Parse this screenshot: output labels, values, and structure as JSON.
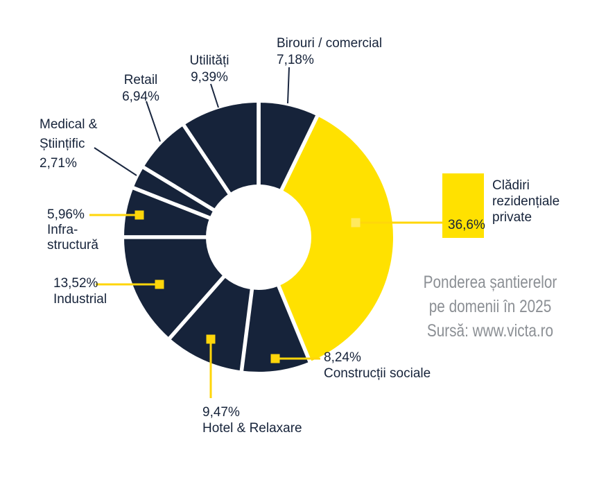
{
  "chart_data": {
    "type": "pie",
    "subtype": "donut",
    "title": "Ponderea șantierelor pe domenii în 2025",
    "source": "Sursă: www.victa.ro",
    "units": "%",
    "start_angle_deg": 0,
    "direction": "clockwise",
    "highlight_index": 1,
    "colors": {
      "highlight": "#ffe100",
      "default": "#16233a",
      "connector_yellow": "#ffd60a",
      "connector_dark": "#1a2740",
      "title_gray": "#8b8f94"
    },
    "series": [
      {
        "label": "Birouri / comercial",
        "value": 7.18,
        "display": "7,18%"
      },
      {
        "label": "Clădiri rezidențiale private",
        "value": 36.6,
        "display": "36,6%"
      },
      {
        "label": "Construcții sociale",
        "value": 8.24,
        "display": "8,24%"
      },
      {
        "label": "Hotel & Relaxare",
        "value": 9.47,
        "display": "9,47%"
      },
      {
        "label": "Industrial",
        "value": 13.52,
        "display": "13,52%"
      },
      {
        "label": "Infrastructură",
        "value": 5.96,
        "display": "5,96%"
      },
      {
        "label": "Medical & Științific",
        "value": 2.71,
        "display": "2,71%"
      },
      {
        "label": "Retail",
        "value": 6.94,
        "display": "6,94%"
      },
      {
        "label": "Utilități",
        "value": 9.39,
        "display": "9,39%"
      }
    ]
  },
  "callouts": {
    "birouri": {
      "name": "Birouri / comercial",
      "pct": "7,18%"
    },
    "utilitati": {
      "name": "Utilități",
      "pct": "9,39%"
    },
    "retail": {
      "name": "Retail",
      "pct": "6,94%"
    },
    "medical": {
      "name_line1": "Medical &",
      "name_line2": "Științific",
      "pct": "2,71%"
    },
    "infra": {
      "pct": "5,96%",
      "name_line1": "Infra-",
      "name_line2": "structură"
    },
    "industrial": {
      "pct": "13,52%",
      "name": "Industrial"
    },
    "hotel": {
      "pct": "9,47%",
      "name": "Hotel & Relaxare"
    },
    "sociale": {
      "pct": "8,24%",
      "name": "Construcții sociale"
    }
  },
  "legend": {
    "pct": "36,6%",
    "name_line1": "Clădiri",
    "name_line2": "rezidențiale",
    "name_line3": "private"
  },
  "title_block": {
    "line1": "Ponderea șantierelor",
    "line2": "pe domenii în 2025",
    "line3": "Sursă: www.victa.ro"
  }
}
